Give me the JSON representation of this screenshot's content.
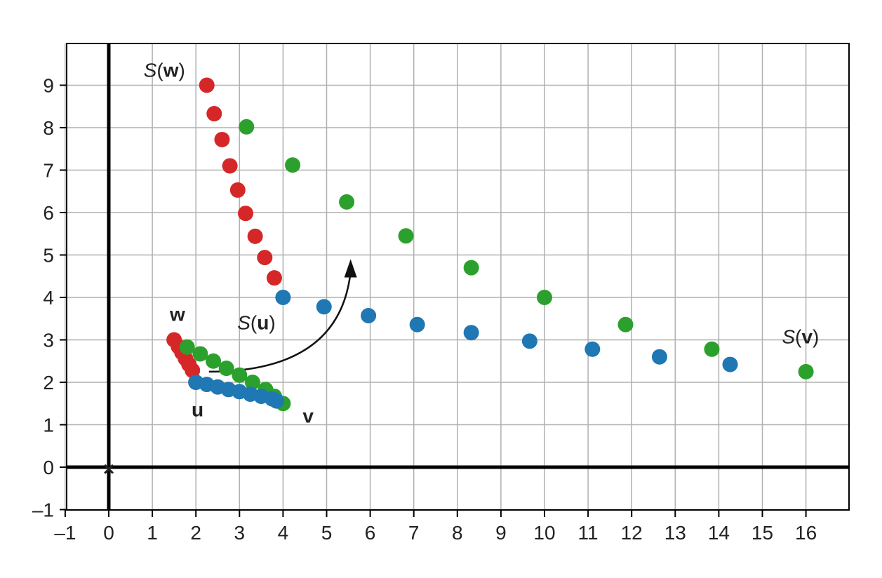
{
  "chart_data": {
    "type": "scatter",
    "xlim": [
      -1,
      17
    ],
    "ylim": [
      -1,
      10
    ],
    "xticks": [
      "–1",
      "0",
      "1",
      "2",
      "3",
      "4",
      "5",
      "6",
      "7",
      "8",
      "9",
      "10",
      "11",
      "12",
      "13",
      "14",
      "15",
      "16"
    ],
    "xtick_values": [
      -1,
      0,
      1,
      2,
      3,
      4,
      5,
      6,
      7,
      8,
      9,
      10,
      11,
      12,
      13,
      14,
      15,
      16
    ],
    "yticks": [
      "–1",
      "0",
      "1",
      "2",
      "3",
      "4",
      "5",
      "6",
      "7",
      "8",
      "9"
    ],
    "ytick_values": [
      -1,
      0,
      1,
      2,
      3,
      4,
      5,
      6,
      7,
      8,
      9
    ],
    "grid": true,
    "origin_marker": "×",
    "colors": {
      "red": "#d62728",
      "green": "#2ca02c",
      "blue": "#1f77b4",
      "axis": "#000000",
      "grid": "#b0b0b0"
    },
    "series": [
      {
        "color": "red",
        "points": [
          [
            1.5,
            3.0
          ],
          [
            1.6,
            2.84
          ],
          [
            1.68,
            2.7
          ],
          [
            1.76,
            2.56
          ],
          [
            1.84,
            2.42
          ],
          [
            1.92,
            2.28
          ],
          [
            2.0,
            2.0
          ]
        ]
      },
      {
        "color": "green",
        "points": [
          [
            1.8,
            2.83
          ],
          [
            2.1,
            2.67
          ],
          [
            2.4,
            2.5
          ],
          [
            2.7,
            2.33
          ],
          [
            3.0,
            2.17
          ],
          [
            3.3,
            2.0
          ],
          [
            3.6,
            1.83
          ],
          [
            3.8,
            1.67
          ],
          [
            4.0,
            1.5
          ]
        ]
      },
      {
        "color": "blue",
        "points": [
          [
            2.0,
            2.0
          ],
          [
            2.25,
            1.95
          ],
          [
            2.5,
            1.89
          ],
          [
            2.75,
            1.83
          ],
          [
            3.0,
            1.78
          ],
          [
            3.25,
            1.72
          ],
          [
            3.5,
            1.67
          ],
          [
            3.75,
            1.61
          ],
          [
            3.85,
            1.56
          ]
        ]
      },
      {
        "color": "red",
        "points": [
          [
            2.25,
            9.0
          ],
          [
            2.42,
            8.33
          ],
          [
            2.6,
            7.72
          ],
          [
            2.78,
            7.1
          ],
          [
            2.96,
            6.53
          ],
          [
            3.14,
            5.98
          ],
          [
            3.36,
            5.44
          ],
          [
            3.58,
            4.94
          ],
          [
            3.8,
            4.46
          ]
        ]
      },
      {
        "color": "green",
        "points": [
          [
            3.16,
            8.02
          ],
          [
            4.22,
            7.12
          ],
          [
            5.46,
            6.25
          ],
          [
            6.82,
            5.45
          ],
          [
            8.32,
            4.7
          ],
          [
            10.0,
            4.0
          ],
          [
            11.86,
            3.36
          ],
          [
            13.84,
            2.78
          ],
          [
            16.0,
            2.25
          ]
        ]
      },
      {
        "color": "blue",
        "points": [
          [
            4.0,
            4.0
          ],
          [
            4.94,
            3.78
          ],
          [
            5.96,
            3.57
          ],
          [
            7.08,
            3.36
          ],
          [
            8.32,
            3.17
          ],
          [
            9.66,
            2.97
          ],
          [
            11.1,
            2.78
          ],
          [
            12.64,
            2.6
          ],
          [
            14.26,
            2.42
          ]
        ]
      }
    ],
    "labels": [
      {
        "id": "label-w",
        "x": 1.4,
        "y": 3.45,
        "prefix": "",
        "bold": "w",
        "suffix": ""
      },
      {
        "id": "label-u",
        "x": 1.9,
        "y": 1.2,
        "prefix": "",
        "bold": "u",
        "suffix": ""
      },
      {
        "id": "label-v",
        "x": 4.45,
        "y": 1.05,
        "prefix": "",
        "bold": "v",
        "suffix": ""
      },
      {
        "id": "label-sw",
        "x": 0.8,
        "y": 9.2,
        "prefix": "S(",
        "bold": "w",
        "suffix": ")"
      },
      {
        "id": "label-su",
        "x": 2.95,
        "y": 3.25,
        "prefix": "S(",
        "bold": "u",
        "suffix": ")"
      },
      {
        "id": "label-sv",
        "x": 15.45,
        "y": 2.92,
        "prefix": "S(",
        "bold": "v",
        "suffix": ")"
      }
    ],
    "arrow": {
      "from": [
        2.3,
        2.25
      ],
      "control": [
        5.3,
        2.25
      ],
      "to": [
        5.55,
        4.9
      ]
    }
  }
}
